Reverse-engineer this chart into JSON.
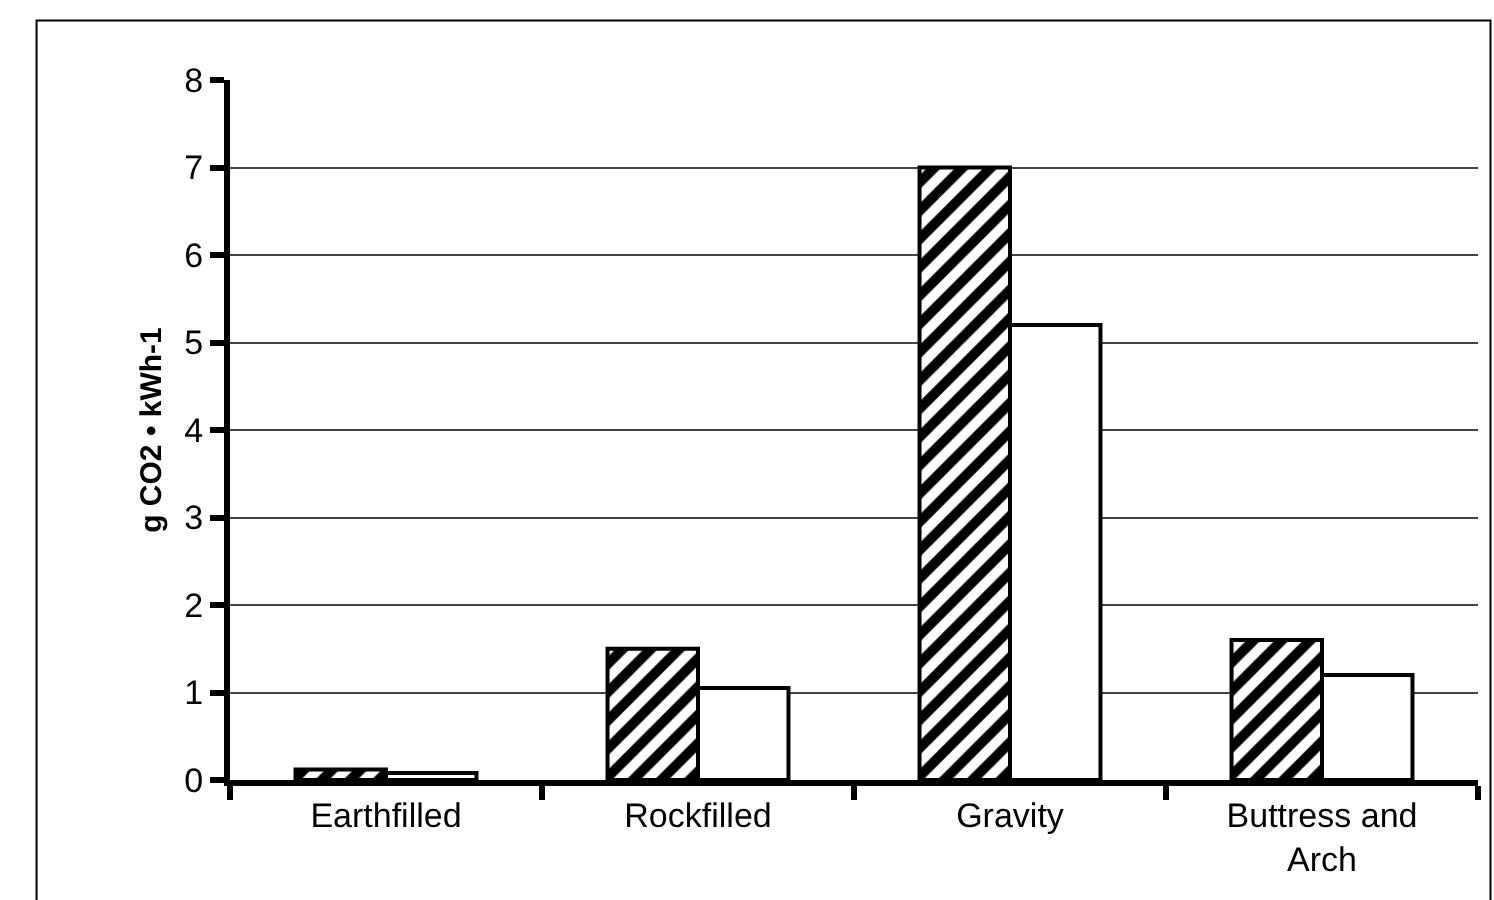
{
  "chart_data": {
    "type": "bar",
    "ylabel": "g CO2 • kWh-1",
    "categories": [
      "Earthfilled",
      "Rockfilled",
      "Gravity",
      "Buttress and Arch"
    ],
    "series": [
      {
        "color": "#000000",
        "values": [
          0.12,
          1.5,
          7.0,
          1.6
        ]
      },
      {
        "color": "#ffffff",
        "values": [
          0.08,
          1.05,
          5.2,
          1.2
        ]
      }
    ],
    "ylim": [
      0,
      8
    ],
    "yticks": [
      0,
      1,
      2,
      3,
      4,
      5,
      6,
      7,
      8
    ],
    "grid": "y",
    "legend": false
  }
}
